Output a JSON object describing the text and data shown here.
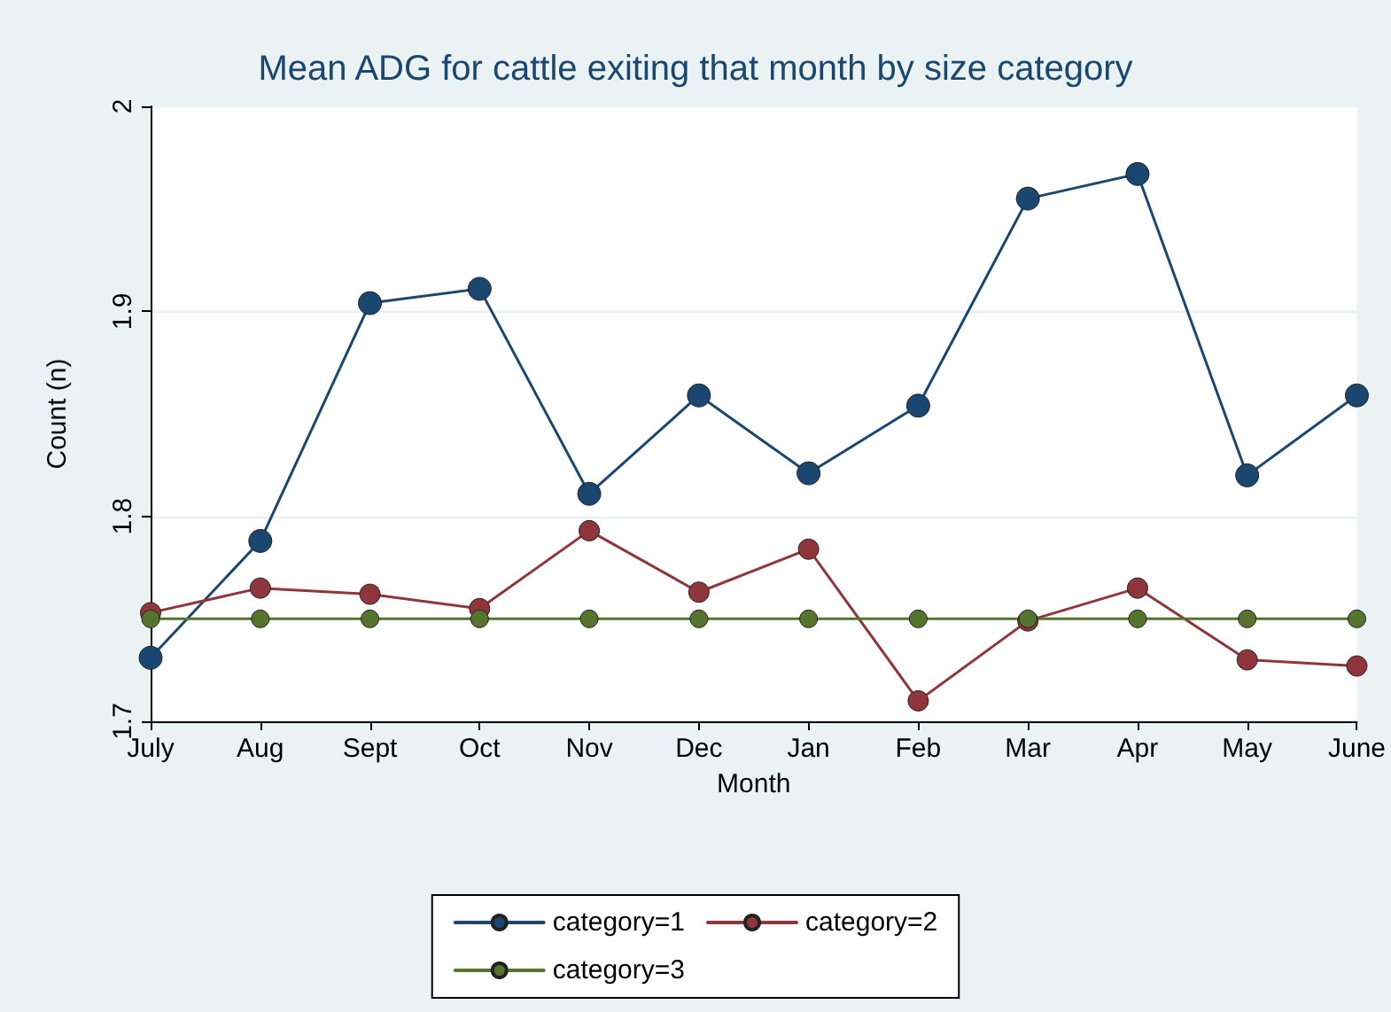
{
  "chart_data": {
    "type": "line",
    "title": "Mean ADG for cattle exiting that month by size category",
    "xlabel": "Month",
    "ylabel": "Count (n)",
    "categories": [
      "July",
      "Aug",
      "Sept",
      "Oct",
      "Nov",
      "Dec",
      "Jan",
      "Feb",
      "Mar",
      "Apr",
      "May",
      "June"
    ],
    "series": [
      {
        "name": "category=1",
        "color": "#1a476f",
        "values": [
          1.731,
          1.788,
          1.904,
          1.911,
          1.811,
          1.859,
          1.821,
          1.854,
          1.955,
          1.967,
          1.82,
          1.859
        ]
      },
      {
        "name": "category=2",
        "color": "#90353b",
        "values": [
          1.753,
          1.765,
          1.762,
          1.755,
          1.793,
          1.763,
          1.784,
          1.71,
          1.749,
          1.765,
          1.73,
          1.727
        ]
      },
      {
        "name": "category=3",
        "color": "#55752f",
        "values": [
          1.75,
          1.75,
          1.75,
          1.75,
          1.75,
          1.75,
          1.75,
          1.75,
          1.75,
          1.75,
          1.75,
          1.75
        ]
      }
    ],
    "ylim": [
      1.7,
      2
    ],
    "yticks": [
      1.7,
      1.8,
      1.9,
      2
    ],
    "grid": "y",
    "legend": "bottom",
    "marker": "circle",
    "line_style": "solid"
  }
}
